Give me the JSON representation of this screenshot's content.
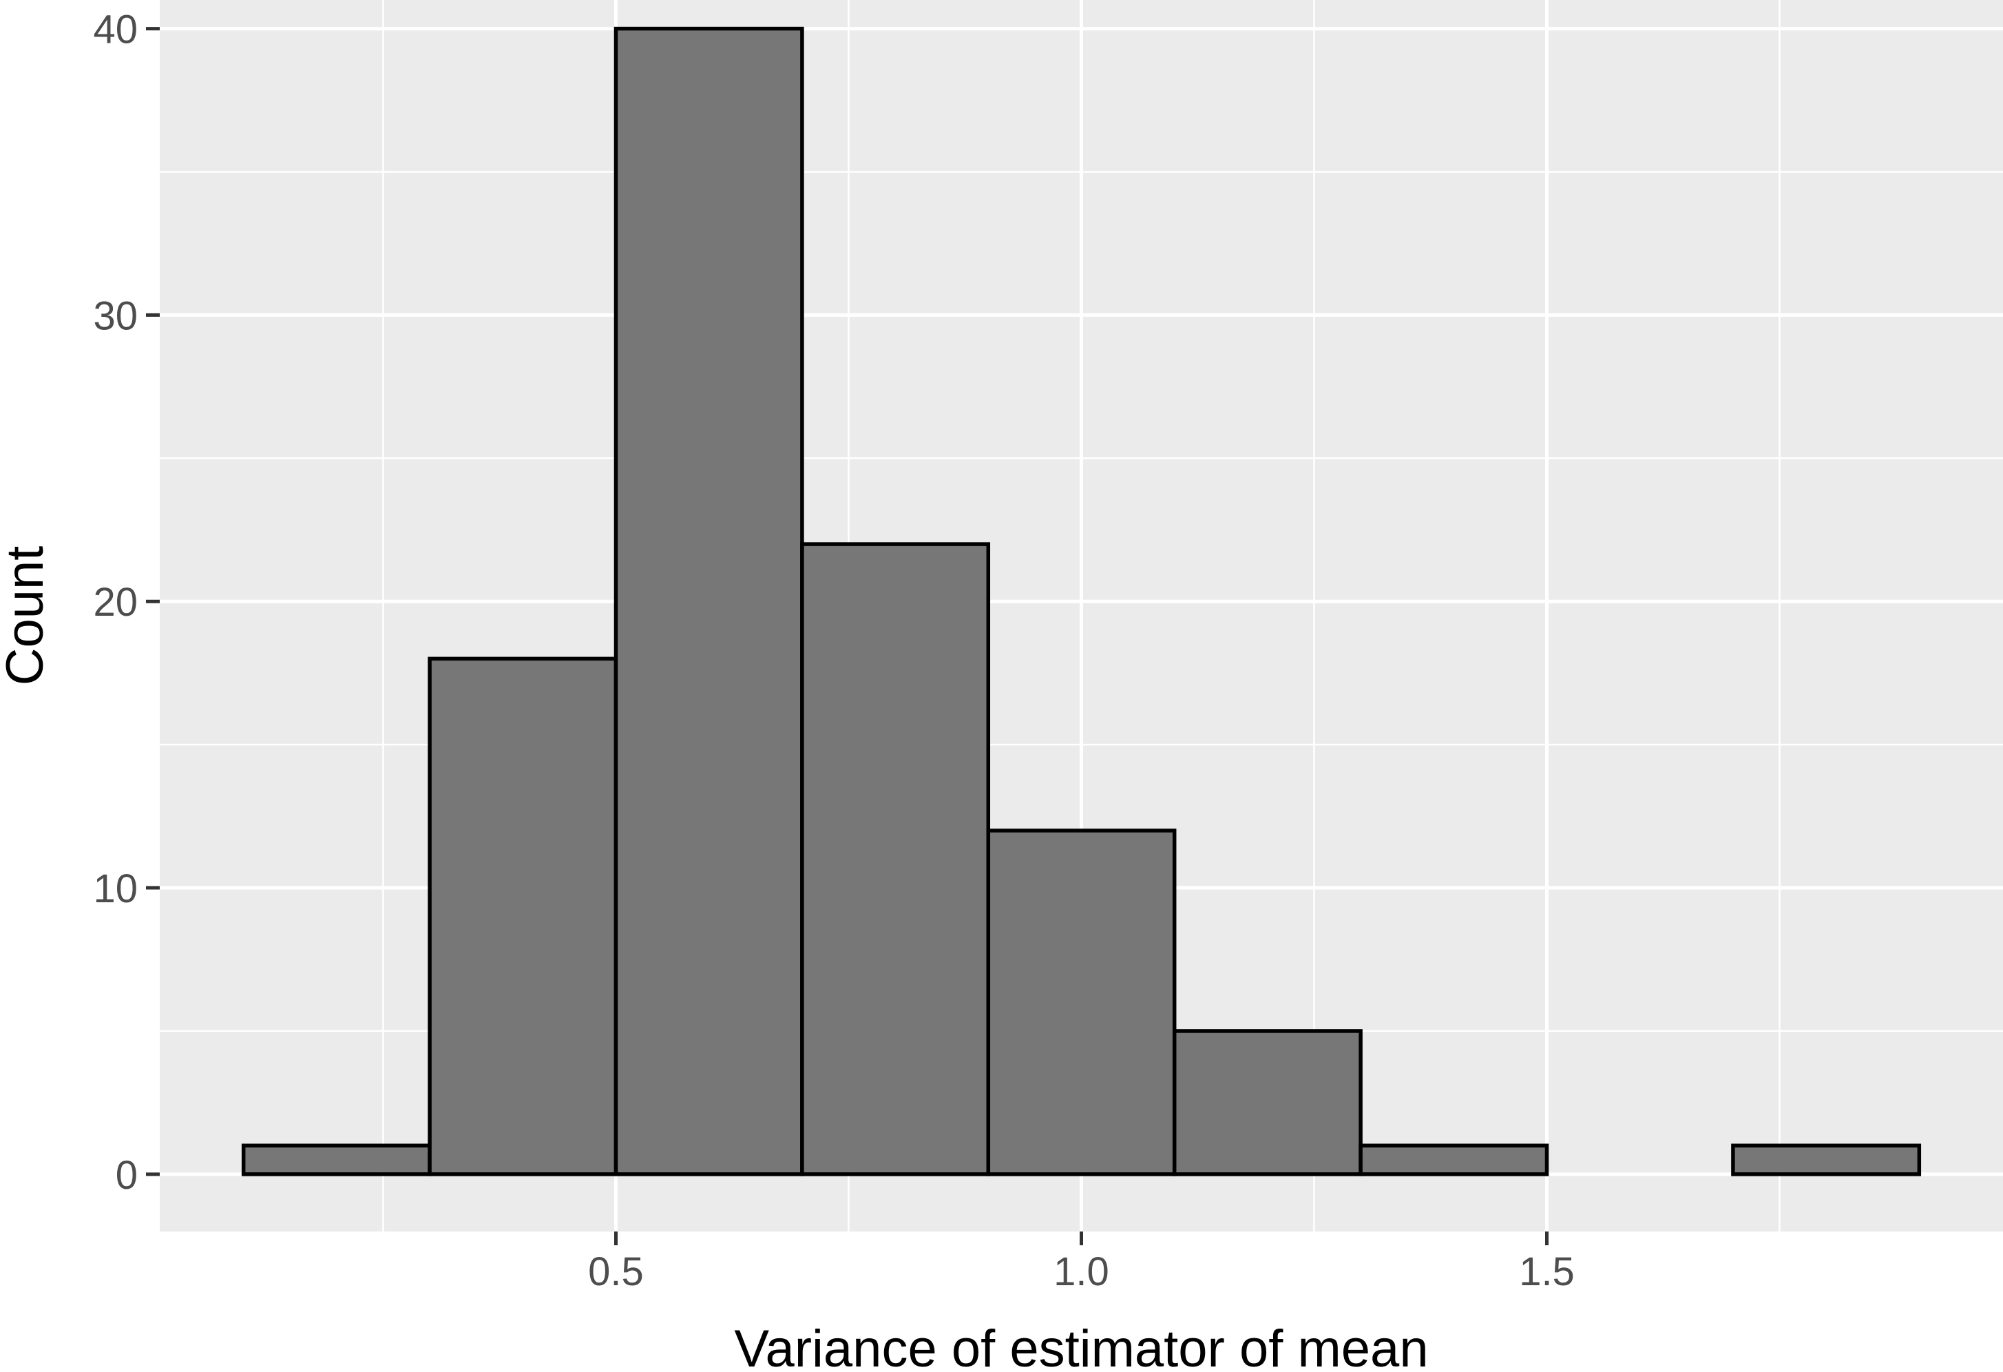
{
  "chart_data": {
    "type": "histogram",
    "title": "",
    "xlabel": "Variance of estimator of mean",
    "ylabel": "Count",
    "bin_width": 0.2,
    "bins": [
      {
        "x0": 0.1,
        "x1": 0.3,
        "count": 1
      },
      {
        "x0": 0.3,
        "x1": 0.5,
        "count": 18
      },
      {
        "x0": 0.5,
        "x1": 0.7,
        "count": 40
      },
      {
        "x0": 0.7,
        "x1": 0.9,
        "count": 22
      },
      {
        "x0": 0.9,
        "x1": 1.1,
        "count": 12
      },
      {
        "x0": 1.1,
        "x1": 1.3,
        "count": 5
      },
      {
        "x0": 1.3,
        "x1": 1.5,
        "count": 1
      },
      {
        "x0": 1.5,
        "x1": 1.7,
        "count": 0
      },
      {
        "x0": 1.7,
        "x1": 1.9,
        "count": 1
      }
    ],
    "xlim": [
      0.01,
      1.99
    ],
    "ylim": [
      -2,
      41
    ],
    "x_ticks": [
      0.5,
      1.0,
      1.5
    ],
    "x_tick_labels": [
      "0.5",
      "1.0",
      "1.5"
    ],
    "x_minor_ticks": [
      0.25,
      0.75,
      1.25,
      1.75
    ],
    "y_ticks": [
      0,
      10,
      20,
      30,
      40
    ],
    "y_tick_labels": [
      "0",
      "10",
      "20",
      "30",
      "40"
    ],
    "y_minor_ticks": [
      5,
      15,
      25,
      35
    ],
    "grid": true,
    "legend": "none",
    "colors": {
      "panel_background": "#ebebeb",
      "grid": "#ffffff",
      "bar_fill": "#777777",
      "bar_outline": "#000000",
      "tick_text": "#4d4d4d",
      "axis_title": "#000000"
    }
  }
}
